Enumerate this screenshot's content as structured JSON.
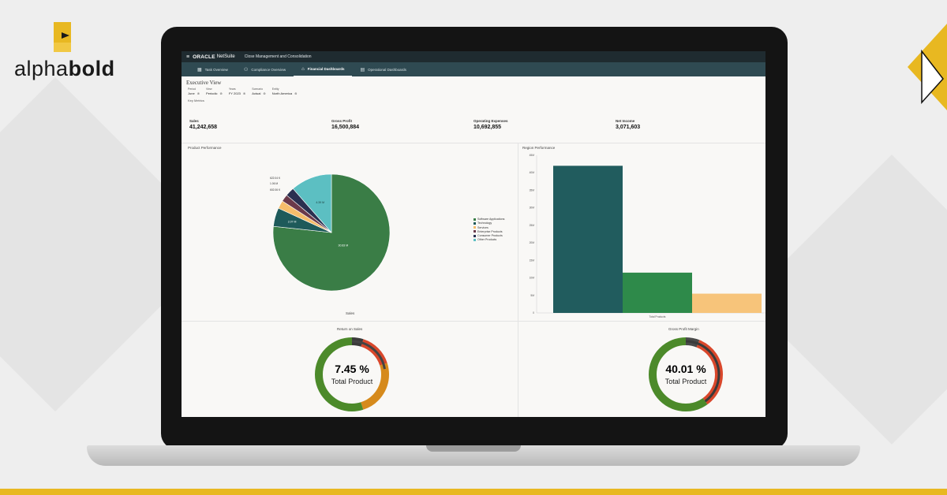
{
  "brand": {
    "name_light": "alpha",
    "name_bold": "bold",
    "accent": "#e8b821"
  },
  "app": {
    "logo": "ORACLE",
    "product": "NetSuite",
    "title": "Close Management and Consolidation",
    "tabs": [
      {
        "label": "Task Overview",
        "icon": "grid-icon",
        "active": false
      },
      {
        "label": "Compliance Overview",
        "icon": "people-icon",
        "active": false
      },
      {
        "label": "Financial Dashboards",
        "icon": "bag-icon",
        "active": true
      },
      {
        "label": "Operational Dashboards",
        "icon": "table-icon",
        "active": false
      }
    ]
  },
  "view": {
    "title": "Executive View",
    "filters": [
      {
        "label": "Period",
        "value": "June"
      },
      {
        "label": "View",
        "value": "Periodic"
      },
      {
        "label": "Years",
        "value": "FY 2023"
      },
      {
        "label": "Scenario",
        "value": "Actual"
      },
      {
        "label": "Entity",
        "value": "North America"
      }
    ],
    "section": "Key Metrics"
  },
  "metrics": [
    {
      "label": "Sales",
      "value": "41,242,658"
    },
    {
      "label": "Gross Profit",
      "value": "16,500,884"
    },
    {
      "label": "Operating Expenses",
      "value": "10,692,855"
    },
    {
      "label": "Net Income",
      "value": "3,071,603"
    }
  ],
  "product_performance": {
    "title": "Product Performance",
    "x_label": "Sales",
    "chart_data": {
      "type": "pie",
      "slices": [
        {
          "name": "Software Applications",
          "label": "30.83 M",
          "value": 30.83,
          "color": "#3a7d46"
        },
        {
          "name": "Technology",
          "label": "2.07 M",
          "value": 2.07,
          "color": "#1e5a5a"
        },
        {
          "name": "Services",
          "label": "",
          "value": 0.9,
          "color": "#f5bd6b"
        },
        {
          "name": "Enterprise Products",
          "label": "",
          "value": 0.8,
          "color": "#6b3a4a"
        },
        {
          "name": "Consumer Products",
          "label": "",
          "value": 1.0,
          "color": "#2a3050"
        },
        {
          "name": "Other Products",
          "label": "",
          "value": 4.6,
          "color": "#5cbfc2"
        }
      ],
      "small_labels": [
        "622.04 K",
        "1.06 M",
        "602.06 K",
        "4.39 M"
      ]
    }
  },
  "region_performance": {
    "title": "Region Performance",
    "chart_data": {
      "type": "bar",
      "categories": [
        "Total Products"
      ],
      "series": [
        {
          "value": 42,
          "color": "#215c5e"
        },
        {
          "value": 11.5,
          "color": "#2e8a4a"
        },
        {
          "value": 5.5,
          "color": "#f7c47a"
        }
      ],
      "yticks": [
        "0",
        "5M",
        "10M",
        "15M",
        "20M",
        "25M",
        "30M",
        "35M",
        "40M",
        "45M"
      ],
      "ylim": [
        0,
        45
      ]
    }
  },
  "return_on_sales": {
    "title": "Return on Sales",
    "value": "7.45 %",
    "caption": "Total Product",
    "chart_data": {
      "type": "gauge",
      "percent": 7.45
    }
  },
  "gross_profit_margin": {
    "title": "Gross Profit Margin",
    "value": "40.01 %",
    "caption": "Total Product",
    "chart_data": {
      "type": "gauge",
      "percent": 40.01
    }
  }
}
